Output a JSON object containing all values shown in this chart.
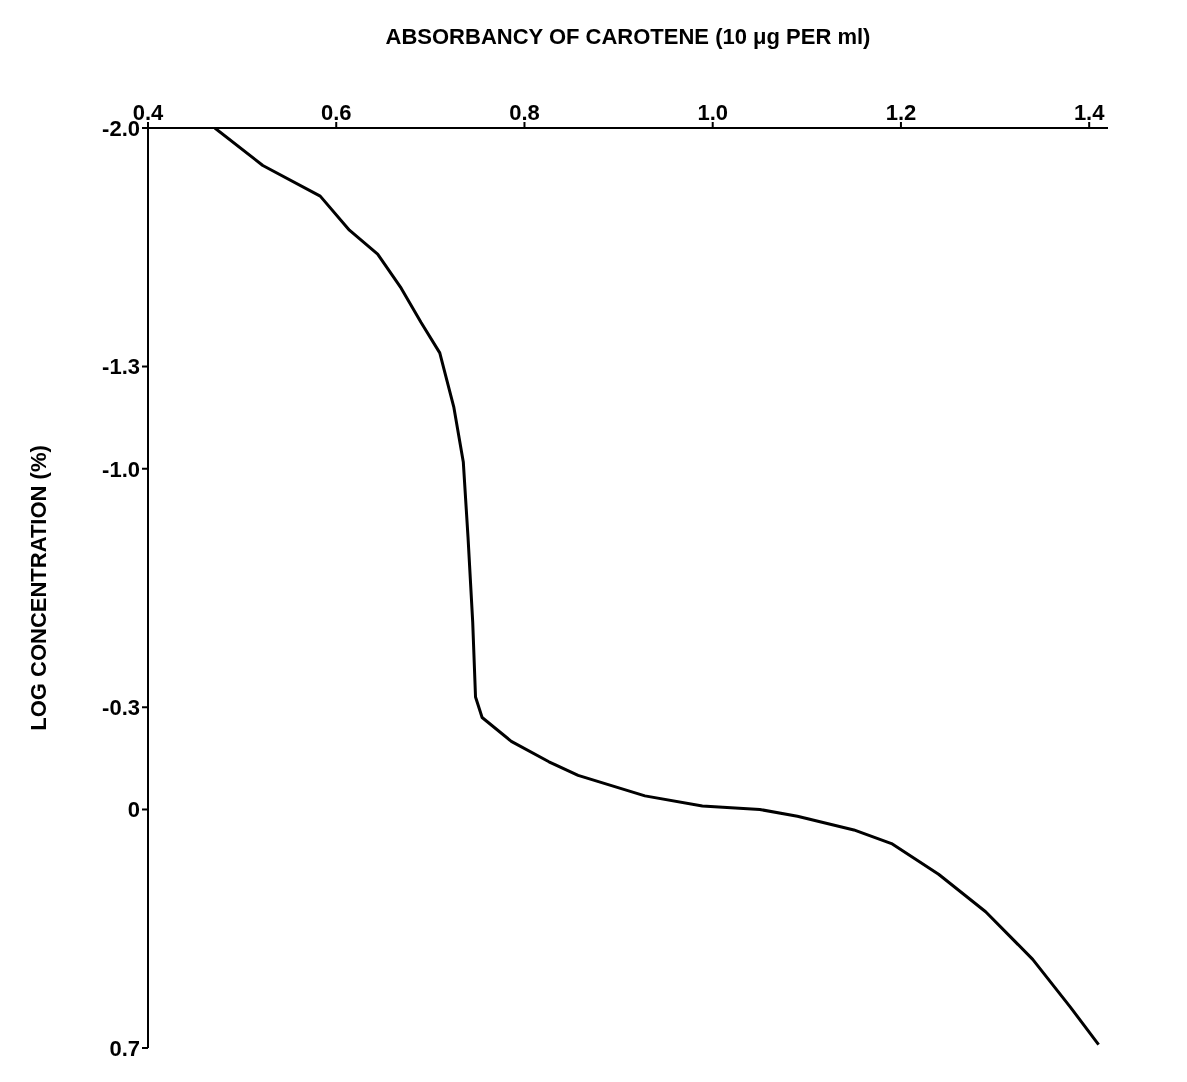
{
  "chart_data": {
    "type": "line",
    "xlabel": "ABSORBANCY OF CAROTENE (10 μg PER ml)",
    "ylabel": "LOG CONCENTRATION (%)",
    "x": [
      0.471,
      0.522,
      0.583,
      0.614,
      0.644,
      0.669,
      0.69,
      0.71,
      0.725,
      0.735,
      0.74,
      0.745,
      0.748,
      0.755,
      0.786,
      0.826,
      0.857,
      0.928,
      0.989,
      1.05,
      1.09,
      1.15,
      1.19,
      1.24,
      1.29,
      1.34,
      1.38,
      1.41
    ],
    "series": [
      {
        "color": "#000000",
        "values": [
          -2.0,
          -1.89,
          -1.8,
          -1.7,
          -1.63,
          -1.53,
          -1.43,
          -1.34,
          -1.18,
          -1.02,
          -0.8,
          -0.55,
          -0.33,
          -0.27,
          -0.2,
          -0.14,
          -0.1,
          -0.04,
          -0.01,
          0.0,
          0.02,
          0.06,
          0.1,
          0.19,
          0.3,
          0.44,
          0.58,
          0.69
        ]
      }
    ],
    "xlim": [
      0.4,
      1.42
    ],
    "xticks": [
      0.4,
      0.6,
      0.8,
      {
        "value": 1,
        "label": "1.0"
      },
      1.2,
      1.4
    ],
    "ylim": [
      0.7,
      -2.0
    ],
    "yticks": [
      {
        "value": -2,
        "label": "-2.0"
      },
      -1.3,
      {
        "value": -1,
        "label": "-1.0"
      },
      -0.3,
      0,
      0.7
    ],
    "grid": false,
    "marker": "none",
    "line_style": "solid"
  }
}
